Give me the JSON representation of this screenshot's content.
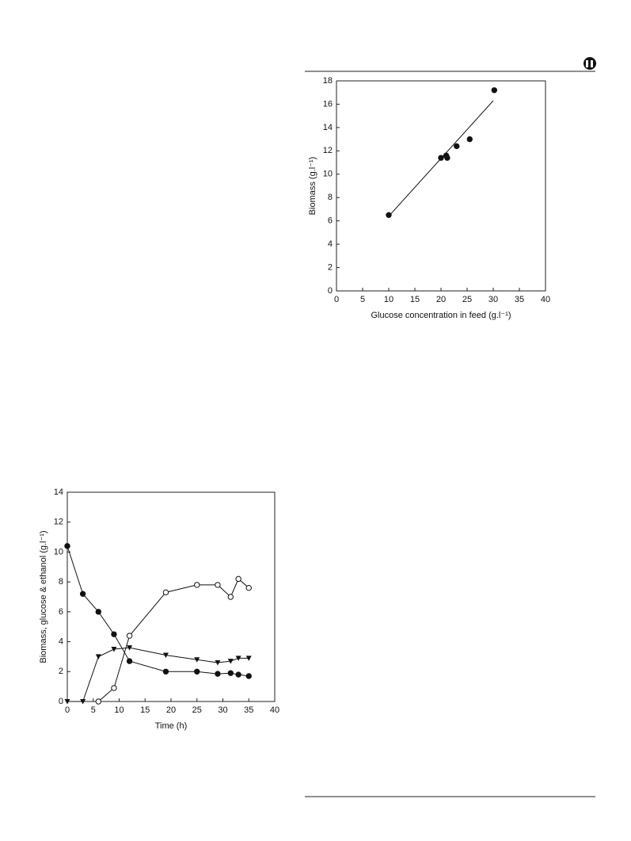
{
  "chart_data": [
    {
      "type": "scatter",
      "xlabel": "Glucose concentration in feed (g.l⁻¹)",
      "ylabel": "Biomass (g.l⁻¹)",
      "xlim": [
        0,
        40
      ],
      "xticks": [
        0,
        5,
        10,
        15,
        20,
        25,
        30,
        35,
        40
      ],
      "ylim": [
        0,
        18
      ],
      "yticks": [
        0,
        2,
        4,
        6,
        8,
        10,
        12,
        14,
        16,
        18
      ],
      "series": [
        {
          "color": "#111111",
          "marker": "filled-circle",
          "x": [
            10,
            20,
            21,
            21.2,
            23,
            25.5,
            30.2
          ],
          "values": [
            6.5,
            11.4,
            11.6,
            11.4,
            12.4,
            13,
            17.2
          ]
        }
      ],
      "fit_line": {
        "color": "#111111",
        "x": [
          10,
          30
        ],
        "values": [
          6.4,
          16.3
        ]
      }
    },
    {
      "type": "line",
      "xlabel": "Time (h)",
      "ylabel": "Biomass, glucose & ethanol (g.l⁻¹)",
      "xlim": [
        0,
        40
      ],
      "xticks": [
        0,
        5,
        10,
        15,
        20,
        25,
        30,
        35,
        40
      ],
      "ylim": [
        0,
        14
      ],
      "yticks": [
        0,
        2,
        4,
        6,
        8,
        10,
        12,
        14
      ],
      "series": [
        {
          "color": "#111111",
          "marker": "filled-circle",
          "x": [
            0,
            3,
            6,
            9,
            12,
            19,
            25,
            29,
            31.5,
            33,
            35
          ],
          "values": [
            10.4,
            7.2,
            6.0,
            4.5,
            2.7,
            2.0,
            2.0,
            1.85,
            1.9,
            1.8,
            1.7
          ]
        },
        {
          "color": "#111111",
          "marker": "filled-triangle",
          "x": [
            0,
            3,
            6,
            9,
            12,
            19,
            25,
            29,
            31.5,
            33,
            35
          ],
          "values": [
            0,
            0,
            3.0,
            3.5,
            3.6,
            3.1,
            2.8,
            2.6,
            2.7,
            2.9,
            2.9
          ]
        },
        {
          "color": "#111111",
          "marker": "open-circle",
          "x": [
            6,
            9,
            12,
            19,
            25,
            29,
            31.5,
            33,
            35
          ],
          "values": [
            0,
            0.9,
            4.4,
            7.3,
            7.8,
            7.8,
            7.0,
            8.2,
            7.6
          ]
        }
      ]
    }
  ]
}
